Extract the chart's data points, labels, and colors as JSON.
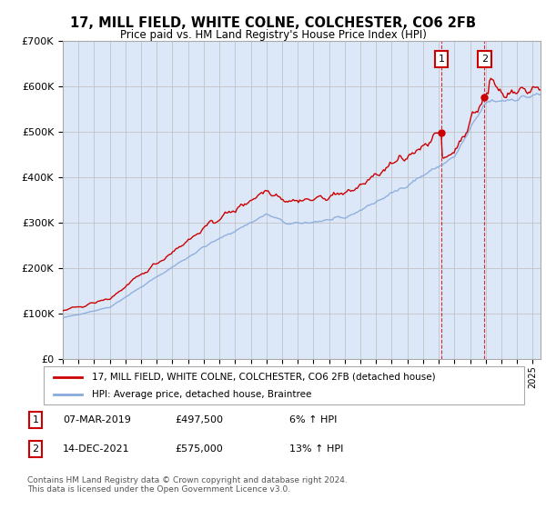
{
  "title": "17, MILL FIELD, WHITE COLNE, COLCHESTER, CO6 2FB",
  "subtitle": "Price paid vs. HM Land Registry's House Price Index (HPI)",
  "background_color": "#ffffff",
  "plot_bg_color": "#dce8f8",
  "grid_color": "#bbbbbb",
  "line1_color": "#cc0000",
  "line2_color": "#88aadd",
  "legend1": "17, MILL FIELD, WHITE COLNE, COLCHESTER, CO6 2FB (detached house)",
  "legend2": "HPI: Average price, detached house, Braintree",
  "sale1_year": 2019.17,
  "sale1_value": 497500,
  "sale2_year": 2021.92,
  "sale2_value": 575000,
  "table_rows": [
    {
      "num": "1",
      "date": "07-MAR-2019",
      "price": "£497,500",
      "change": "6% ↑ HPI"
    },
    {
      "num": "2",
      "date": "14-DEC-2021",
      "price": "£575,000",
      "change": "13% ↑ HPI"
    }
  ],
  "footer": "Contains HM Land Registry data © Crown copyright and database right 2024.\nThis data is licensed under the Open Government Licence v3.0.",
  "ylim": [
    0,
    700000
  ],
  "yticks": [
    0,
    100000,
    200000,
    300000,
    400000,
    500000,
    600000,
    700000
  ],
  "ytick_labels": [
    "£0",
    "£100K",
    "£200K",
    "£300K",
    "£400K",
    "£500K",
    "£600K",
    "£700K"
  ],
  "xmin": 1995,
  "xmax": 2025.5
}
